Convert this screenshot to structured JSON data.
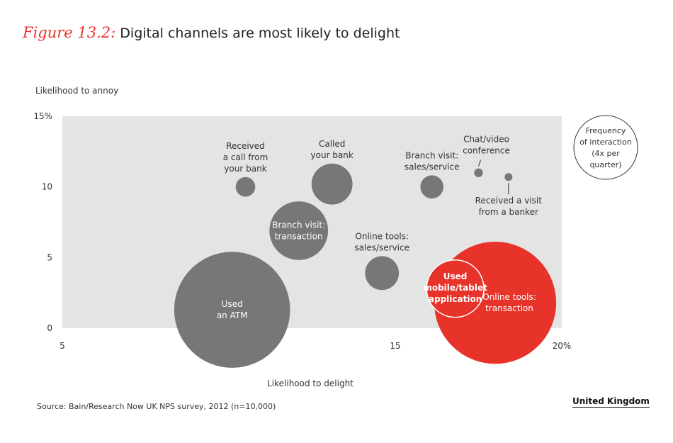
{
  "title": {
    "prefix": "Figure 13.2:",
    "text": "Digital channels are most likely to delight"
  },
  "source": "Source: Bain/Research Now UK NPS survey, 2012 (n=10,000)",
  "region": "United Kingdom",
  "colors": {
    "gray_bubble": "#777777",
    "accent": "#e8332a",
    "plot_bg": "#e4e4e4"
  },
  "chart_data": {
    "type": "scatter",
    "xlabel": "Likelihood to delight",
    "ylabel": "Likelihood to annoy",
    "xlim": [
      5,
      20
    ],
    "ylim": [
      0,
      15
    ],
    "x_ticks": [
      {
        "value": 5,
        "label": "5"
      },
      {
        "value": 15,
        "label": "15"
      },
      {
        "value": 20,
        "label": "20%"
      }
    ],
    "y_ticks": [
      {
        "value": 0,
        "label": "0"
      },
      {
        "value": 5,
        "label": "5"
      },
      {
        "value": 10,
        "label": "10"
      },
      {
        "value": 15,
        "label": "15%"
      }
    ],
    "size_legend": [
      "Frequency",
      "of interaction",
      "(4x per",
      "quarter)"
    ],
    "bubbles": [
      {
        "label": [
          "Used",
          "an ATM"
        ],
        "x": 10.1,
        "y": 1.3,
        "size": 17.6,
        "color": "#777777",
        "label_pos": "inside"
      },
      {
        "label": [
          "Branch visit:",
          "transaction"
        ],
        "x": 12.1,
        "y": 6.9,
        "size": 4.5,
        "color": "#777777",
        "label_pos": "inside"
      },
      {
        "label": [
          "Received",
          "a call from",
          "your bank"
        ],
        "x": 10.5,
        "y": 10,
        "size": 0.5,
        "color": "#777777",
        "label_pos": "above"
      },
      {
        "label": [
          "Called",
          "your bank"
        ],
        "x": 13.1,
        "y": 10.2,
        "size": 2.2,
        "color": "#777777",
        "label_pos": "above"
      },
      {
        "label": [
          "Online tools:",
          "sales/service"
        ],
        "x": 14.6,
        "y": 3.9,
        "size": 1.5,
        "color": "#777777",
        "label_pos": "above"
      },
      {
        "label": [
          "Branch visit:",
          "sales/service"
        ],
        "x": 16.1,
        "y": 10,
        "size": 0.7,
        "color": "#777777",
        "label_pos": "above"
      },
      {
        "label": [
          "Chat/video",
          "conference"
        ],
        "x": 17.5,
        "y": 11,
        "size": 0.1,
        "color": "#777777",
        "label_pos": "above-leader"
      },
      {
        "label": [
          "Received a visit",
          "from a banker"
        ],
        "x": 18.4,
        "y": 10.7,
        "size": 0.08,
        "color": "#777777",
        "label_pos": "below-leader"
      },
      {
        "label": [
          "Online tools:",
          "transaction"
        ],
        "x": 18,
        "y": 1.8,
        "size": 19.5,
        "color": "#e8332a",
        "label_pos": "inside-right"
      },
      {
        "label": [
          "Used",
          "mobile/tablet",
          "application"
        ],
        "x": 16.8,
        "y": 2.8,
        "size": 4.3,
        "color": "#e8332a",
        "label_pos": "inside-outline"
      }
    ]
  }
}
